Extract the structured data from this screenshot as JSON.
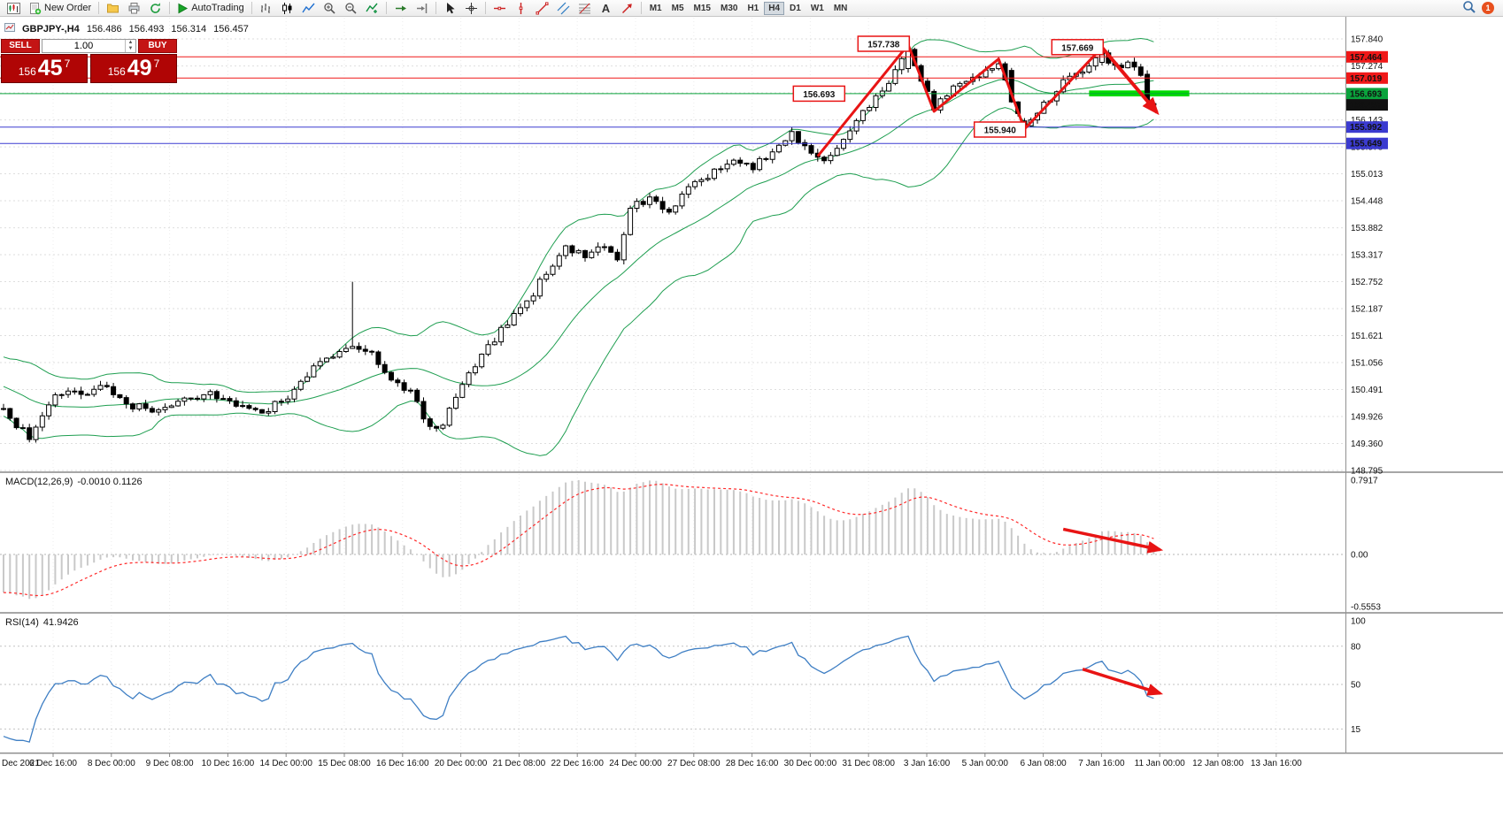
{
  "toolbar": {
    "new_order": "New Order",
    "autotrading": "AutoTrading",
    "timeframes": [
      "M1",
      "M5",
      "M15",
      "M30",
      "H1",
      "H4",
      "D1",
      "W1",
      "MN"
    ],
    "active_timeframe": "H4",
    "notification_count": "1"
  },
  "trade": {
    "sell_label": "SELL",
    "buy_label": "BUY",
    "volume": "1.00",
    "sell": {
      "main": "156",
      "pips": "45",
      "pt": "7"
    },
    "buy": {
      "main": "156",
      "pips": "49",
      "pt": "7"
    }
  },
  "ohlc": {
    "symbol": "GBPJPY-,H4",
    "open": "156.486",
    "high": "156.493",
    "low": "156.314",
    "close": "156.457"
  },
  "panels": {
    "macd": {
      "title": "MACD(12,26,9)",
      "values": "-0.0010 0.1126"
    },
    "rsi": {
      "title": "RSI(14)",
      "values": "41.9426"
    }
  },
  "chart_data": {
    "type": "candlestick",
    "symbol": "GBPJPY-",
    "timeframe": "H4",
    "price_scale_ticks": [
      "157.840",
      "157.274",
      "156.709",
      "156.143",
      "155.578",
      "155.013",
      "154.448",
      "153.882",
      "153.317",
      "152.752",
      "152.187",
      "151.621",
      "151.056",
      "150.491",
      "149.926",
      "149.360",
      "148.795"
    ],
    "macd_scale_ticks": [
      {
        "label": "0.7917",
        "value": 0.7917
      },
      {
        "label": "0.00",
        "value": 0
      },
      {
        "label": "-0.5553",
        "value": -0.5553
      }
    ],
    "rsi_scale_ticks": [
      {
        "label": "100",
        "value": 100
      },
      {
        "label": "80",
        "value": 80
      },
      {
        "label": "50",
        "value": 50
      },
      {
        "label": "15",
        "value": 15
      }
    ],
    "rsi_levels": [
      80,
      50,
      15
    ],
    "time_labels": [
      "Dec 2021",
      "6 Dec 16:00",
      "8 Dec 00:00",
      "9 Dec 08:00",
      "10 Dec 16:00",
      "14 Dec 00:00",
      "15 Dec 08:00",
      "16 Dec 16:00",
      "20 Dec 00:00",
      "21 Dec 08:00",
      "22 Dec 16:00",
      "24 Dec 00:00",
      "27 Dec 08:00",
      "28 Dec 16:00",
      "30 Dec 00:00",
      "31 Dec 08:00",
      "3 Jan 16:00",
      "5 Jan 00:00",
      "6 Jan 08:00",
      "7 Jan 16:00",
      "11 Jan 00:00",
      "12 Jan 08:00",
      "13 Jan 16:00"
    ],
    "horizontal_lines": [
      {
        "label": "157.464",
        "value": 157.464,
        "color": "#f01818"
      },
      {
        "label": "157.019",
        "value": 157.019,
        "color": "#f01818"
      },
      {
        "label": "156.693",
        "value": 156.693,
        "color": "#0aa33c"
      },
      {
        "label": "155.992",
        "value": 155.992,
        "color": "#3b3bd0"
      },
      {
        "label": "155.649",
        "value": 155.649,
        "color": "#3b3bd0"
      }
    ],
    "current_price": {
      "label": "156.457",
      "value": 156.457,
      "color": "#111111"
    },
    "annotations": [
      {
        "label": "157.738",
        "bar": 141,
        "price": 157.738
      },
      {
        "label": "157.669",
        "bar": 171,
        "price": 157.669
      },
      {
        "label": "156.693",
        "bar": 131,
        "price": 156.693
      },
      {
        "label": "155.940",
        "bar": 159,
        "price": 155.94
      }
    ],
    "zigzag": [
      [
        126,
        155.38
      ],
      [
        140,
        157.72
      ],
      [
        144,
        156.32
      ],
      [
        154,
        157.42
      ],
      [
        158,
        155.95
      ],
      [
        170,
        157.66
      ]
    ],
    "trend_arrow": {
      "from": [
        170,
        157.66
      ],
      "to": [
        178.5,
        156.3
      ]
    },
    "macd_arrow": {
      "from": [
        164,
        0.27
      ],
      "to": [
        179,
        0.05
      ]
    },
    "rsi_arrow": {
      "from": [
        167,
        62
      ],
      "to": [
        179,
        43
      ]
    },
    "support_zone": {
      "bar_start": 168,
      "bar_end": 183.5,
      "price_top": 156.76,
      "price_bottom": 156.635,
      "color": "#00dc00"
    },
    "first_bar": -60,
    "last_bar": 178,
    "price_path": [
      [
        -60,
        153.2
      ],
      [
        -40,
        152.2
      ],
      [
        -25,
        151.4
      ],
      [
        -12,
        150.7
      ],
      [
        -4,
        150.25
      ],
      [
        0,
        150.1
      ],
      [
        2,
        149.75
      ],
      [
        4,
        149.5
      ],
      [
        8,
        150.45
      ],
      [
        12,
        150.4
      ],
      [
        16,
        150.55
      ],
      [
        20,
        150.15
      ],
      [
        24,
        150.05
      ],
      [
        28,
        150.25
      ],
      [
        32,
        150.4
      ],
      [
        36,
        150.2
      ],
      [
        40,
        150.0
      ],
      [
        44,
        150.35
      ],
      [
        48,
        150.95
      ],
      [
        52,
        151.3
      ],
      [
        54,
        151.45
      ],
      [
        57,
        151.3
      ],
      [
        60,
        150.65
      ],
      [
        63,
        150.45
      ],
      [
        66,
        149.65
      ],
      [
        68,
        149.8
      ],
      [
        71,
        150.6
      ],
      [
        74,
        151.2
      ],
      [
        78,
        151.9
      ],
      [
        81,
        152.3
      ],
      [
        84,
        152.95
      ],
      [
        87,
        153.45
      ],
      [
        90,
        153.3
      ],
      [
        93,
        153.55
      ],
      [
        95,
        153.25
      ],
      [
        97,
        154.3
      ],
      [
        100,
        154.5
      ],
      [
        103,
        154.2
      ],
      [
        106,
        154.75
      ],
      [
        110,
        155.05
      ],
      [
        113,
        155.35
      ],
      [
        116,
        155.15
      ],
      [
        119,
        155.5
      ],
      [
        122,
        155.9
      ],
      [
        124,
        155.55
      ],
      [
        127,
        155.35
      ],
      [
        130,
        155.7
      ],
      [
        133,
        156.3
      ],
      [
        136,
        156.75
      ],
      [
        138,
        157.15
      ],
      [
        140,
        157.6
      ],
      [
        142,
        157.0
      ],
      [
        144,
        156.4
      ],
      [
        146,
        156.7
      ],
      [
        148,
        156.9
      ],
      [
        151,
        157.1
      ],
      [
        154,
        157.35
      ],
      [
        156,
        156.6
      ],
      [
        158,
        156.0
      ],
      [
        160,
        156.35
      ],
      [
        162,
        156.6
      ],
      [
        164,
        156.95
      ],
      [
        166,
        157.1
      ],
      [
        168,
        157.3
      ],
      [
        170,
        157.52
      ],
      [
        172,
        157.28
      ],
      [
        174,
        157.32
      ],
      [
        176,
        157.12
      ],
      [
        177,
        156.62
      ],
      [
        178,
        156.46
      ]
    ],
    "special_bars": [
      {
        "i": 54,
        "high": 152.75
      },
      {
        "i": 140,
        "open": 157.22,
        "close": 157.62,
        "high": 157.738
      },
      {
        "i": 154,
        "close": 157.32,
        "high": 157.455
      },
      {
        "i": 156,
        "open": 157.18,
        "close": 156.52
      },
      {
        "i": 158,
        "open": 156.12,
        "close": 156.02,
        "low": 155.94
      },
      {
        "i": 170,
        "open": 157.35,
        "close": 157.55,
        "high": 157.669
      },
      {
        "i": 177,
        "open": 157.1,
        "close": 156.56,
        "low": 156.43
      },
      {
        "i": 178,
        "open": 156.486,
        "high": 156.493,
        "low": 156.314,
        "close": 156.457
      }
    ],
    "colors": {
      "bull": "#ffffff",
      "bear": "#000000",
      "wick": "#000000",
      "bollinger": "#1e9e50",
      "macd_hist": "#c9c9c9",
      "macd_signal": "#ff2a2a",
      "rsi": "#3f7fc4",
      "trend": "#e81414"
    }
  }
}
